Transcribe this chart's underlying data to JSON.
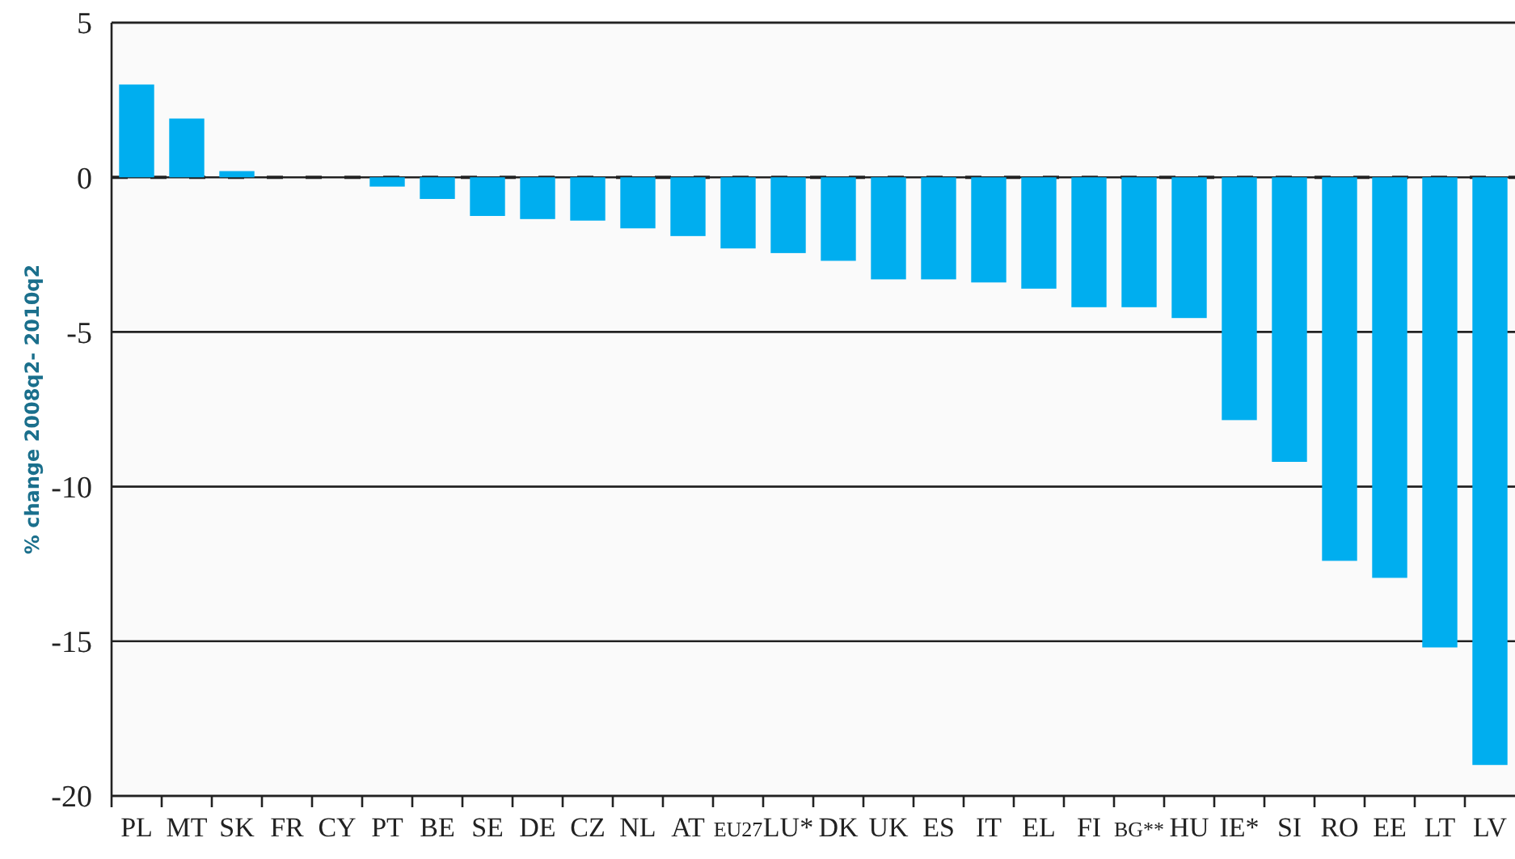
{
  "chart_data": {
    "type": "bar",
    "ylabel": "% change 2008q2- 2010q2",
    "categories": [
      "PL",
      "MT",
      "SK",
      "FR",
      "CY",
      "PT",
      "BE",
      "SE",
      "DE",
      "CZ",
      "NL",
      "AT",
      "EU27",
      "LU*",
      "DK",
      "UK",
      "ES",
      "IT",
      "EL",
      "FI",
      "BG**",
      "HU",
      "IE*",
      "SI",
      "RO",
      "EE",
      "LT",
      "LV"
    ],
    "values": [
      3.0,
      1.9,
      0.2,
      0,
      0,
      -0.3,
      -0.7,
      -1.25,
      -1.35,
      -1.4,
      -1.65,
      -1.9,
      -2.3,
      -2.45,
      -2.7,
      -3.3,
      -3.3,
      -3.4,
      -3.6,
      -4.2,
      -4.2,
      -4.55,
      -7.85,
      -9.2,
      -12.4,
      -12.95,
      -15.2,
      -19.0
    ],
    "color": "#00aeef",
    "ylim": [
      -20,
      5
    ],
    "yticks": [
      5,
      0,
      -5,
      -10,
      -15,
      -20
    ],
    "grid": "y",
    "ref_lines": [
      {
        "axis": "y",
        "value": 0,
        "line_style": "dashed",
        "color": "#222222"
      }
    ]
  }
}
